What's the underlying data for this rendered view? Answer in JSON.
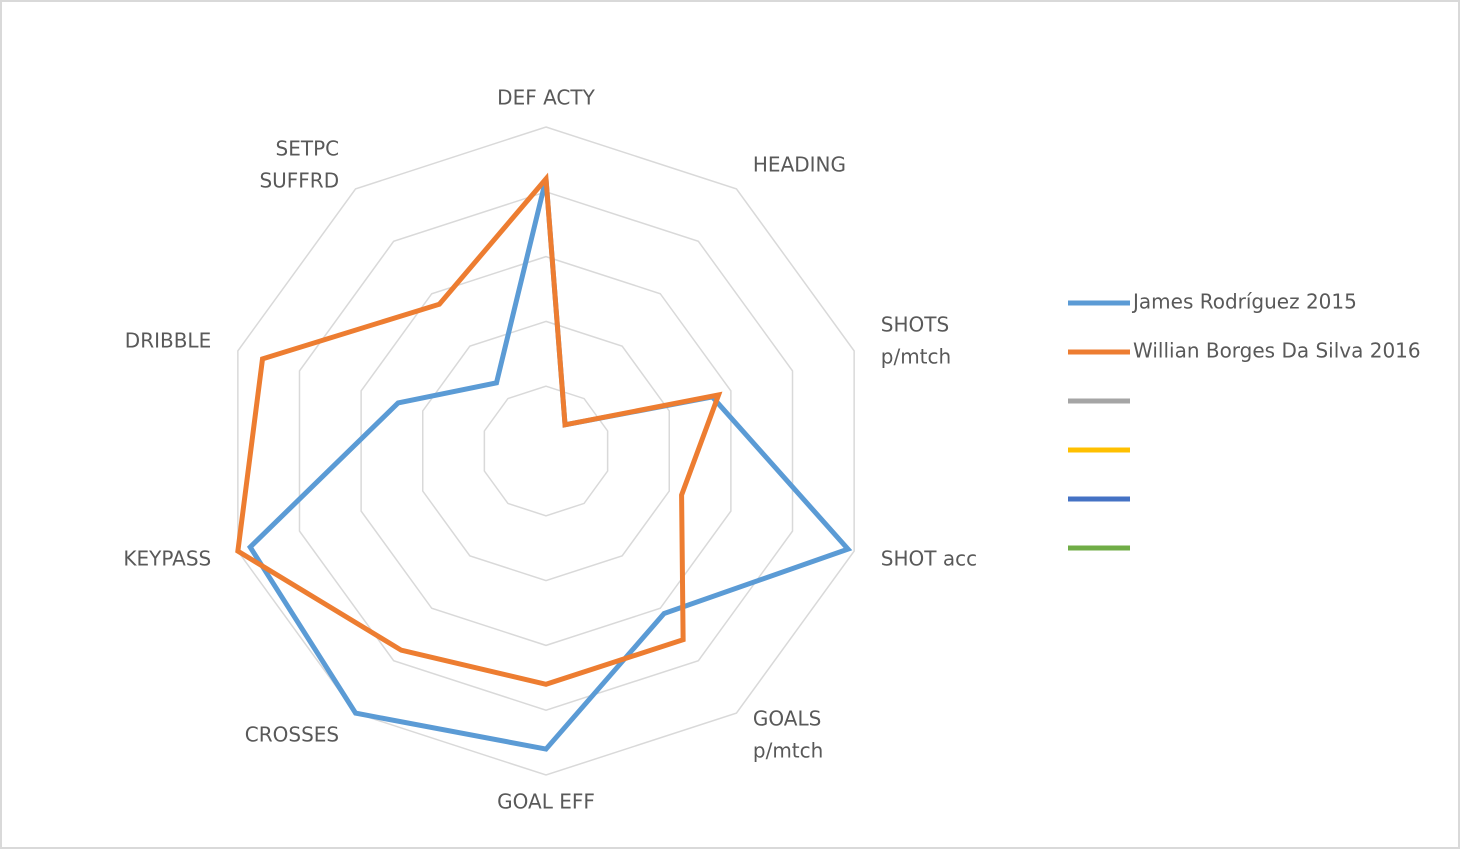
{
  "chart_data": {
    "type": "radar",
    "categories": [
      "DEF ACTY",
      "HEADING",
      [
        "SHOTS",
        "p/mtch"
      ],
      "SHOT acc",
      [
        "GOALS",
        "p/mtch"
      ],
      "GOAL EFF",
      "CROSSES",
      "KEYPASS",
      "DRIBBLE",
      [
        "SETPC",
        "SUFFRD"
      ]
    ],
    "rlim": [
      0,
      5
    ],
    "rticks": [
      1,
      2,
      3,
      4,
      5
    ],
    "grid": true,
    "legend": "right",
    "series": [
      {
        "name": "James Rodríguez 2015",
        "color": "#5b9bd5",
        "values": [
          4.2,
          0.5,
          2.7,
          4.9,
          3.1,
          4.6,
          5.0,
          4.8,
          2.4,
          1.3
        ]
      },
      {
        "name": "Willian Borges Da Silva 2016",
        "color": "#ed7d31",
        "values": [
          4.2,
          0.5,
          2.8,
          2.2,
          3.6,
          3.6,
          3.8,
          5.0,
          4.6,
          2.8
        ]
      },
      {
        "color": "#a5a5a5",
        "values": [
          null,
          null,
          null,
          null,
          null,
          null,
          null,
          null,
          null,
          null
        ]
      },
      {
        "color": "#ffc000",
        "values": [
          null,
          null,
          null,
          null,
          null,
          null,
          null,
          null,
          null,
          null
        ]
      },
      {
        "color": "#4472c4",
        "values": [
          null,
          null,
          null,
          null,
          null,
          null,
          null,
          null,
          null,
          null
        ]
      },
      {
        "color": "#70ad47",
        "values": [
          null,
          null,
          null,
          null,
          null,
          null,
          null,
          null,
          null,
          null
        ]
      }
    ]
  }
}
